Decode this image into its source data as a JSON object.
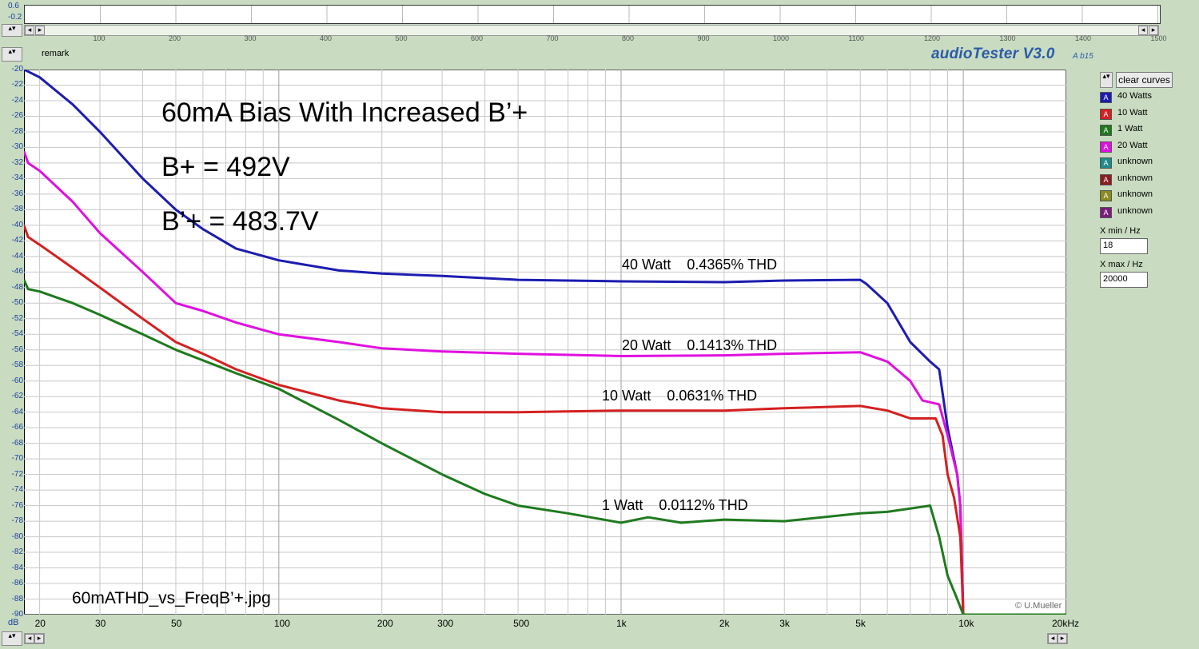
{
  "top_strip": {
    "y_labels": [
      "0.6",
      "-0.2"
    ],
    "x_ticks": [
      "100",
      "200",
      "300",
      "400",
      "500",
      "600",
      "700",
      "800",
      "900",
      "1000",
      "1100",
      "1200",
      "1300",
      "1400",
      "1500"
    ]
  },
  "header": {
    "remark_label": "remark",
    "app_title": "audioTester V3.0",
    "app_subtitle": "A b15"
  },
  "chart_texts": {
    "title_line1": "60mA Bias With Increased B’+",
    "title_line2": "B+ = 492V",
    "title_line3": "B’+ = 483.7V",
    "filename": "60mATHD_vs_FreqB’+.jpg",
    "copyright": "© U.Mueller"
  },
  "annotations": [
    {
      "label": "40 Watt    0.4365% THD",
      "color": "#000000"
    },
    {
      "label": "20 Watt    0.1413% THD",
      "color": "#000000"
    },
    {
      "label": "10 Watt    0.0631% THD",
      "color": "#000000"
    },
    {
      "label": "1 Watt    0.0112% THD",
      "color": "#000000"
    }
  ],
  "panel": {
    "clear_button": "clear curves",
    "legend": [
      {
        "label": "40 Watts",
        "color": "#1c1cb0"
      },
      {
        "label": "10 Watt",
        "color": "#d42020"
      },
      {
        "label": "1 Watt",
        "color": "#1e7a1e"
      },
      {
        "label": "20 Watt",
        "color": "#e010e0"
      },
      {
        "label": "unknown",
        "color": "#1e8a8a"
      },
      {
        "label": "unknown",
        "color": "#8a1e1e"
      },
      {
        "label": "unknown",
        "color": "#8a8a1e"
      },
      {
        "label": "unknown",
        "color": "#7a1e7a"
      }
    ],
    "xmin_label": "X min / Hz",
    "xmin_value": "18",
    "xmax_label": "X max / Hz",
    "xmax_value": "20000"
  },
  "chart_data": {
    "type": "line",
    "xlabel": "kHz",
    "ylabel": "dB",
    "x_scale": "log",
    "xlim": [
      18,
      20000
    ],
    "ylim": [
      -90,
      -20
    ],
    "grid": true,
    "x_tick_labels": [
      "20",
      "30",
      "50",
      "100",
      "200",
      "300",
      "500",
      "1k",
      "2k",
      "3k",
      "5k",
      "10k",
      "20kHz"
    ],
    "x_tick_values": [
      20,
      30,
      50,
      100,
      200,
      300,
      500,
      1000,
      2000,
      3000,
      5000,
      10000,
      20000
    ],
    "y_tick_labels": [
      "-20",
      "-22",
      "-24",
      "-26",
      "-28",
      "-30",
      "-32",
      "-34",
      "-36",
      "-38",
      "-40",
      "-42",
      "-44",
      "-46",
      "-48",
      "-50",
      "-52",
      "-54",
      "-56",
      "-58",
      "-60",
      "-62",
      "-64",
      "-66",
      "-68",
      "-70",
      "-72",
      "-74",
      "-76",
      "-78",
      "-80",
      "-82",
      "-84",
      "-86",
      "-88",
      "-90"
    ],
    "series": [
      {
        "name": "40 Watts",
        "color": "#1c1cb0",
        "points": [
          [
            18,
            -20
          ],
          [
            20,
            -21
          ],
          [
            25,
            -24.5
          ],
          [
            30,
            -28
          ],
          [
            40,
            -34
          ],
          [
            50,
            -38
          ],
          [
            60,
            -40.5
          ],
          [
            75,
            -43
          ],
          [
            100,
            -44.5
          ],
          [
            150,
            -45.8
          ],
          [
            200,
            -46.2
          ],
          [
            300,
            -46.5
          ],
          [
            500,
            -47
          ],
          [
            1000,
            -47.2
          ],
          [
            2000,
            -47.3
          ],
          [
            3000,
            -47.1
          ],
          [
            5000,
            -47
          ],
          [
            5200,
            -47.5
          ],
          [
            6000,
            -50
          ],
          [
            7000,
            -55
          ],
          [
            8000,
            -57.5
          ],
          [
            8500,
            -58.5
          ],
          [
            9000,
            -66
          ],
          [
            9600,
            -72
          ],
          [
            9800,
            -76
          ],
          [
            10000,
            -90
          ],
          [
            20000,
            -90
          ]
        ]
      },
      {
        "name": "20 Watt",
        "color": "#e010e0",
        "points": [
          [
            18,
            -30.5
          ],
          [
            18.5,
            -32
          ],
          [
            20,
            -33
          ],
          [
            25,
            -37
          ],
          [
            30,
            -41
          ],
          [
            40,
            -46
          ],
          [
            50,
            -50
          ],
          [
            60,
            -51
          ],
          [
            75,
            -52.5
          ],
          [
            100,
            -54
          ],
          [
            150,
            -55
          ],
          [
            200,
            -55.8
          ],
          [
            300,
            -56.2
          ],
          [
            500,
            -56.5
          ],
          [
            1000,
            -56.8
          ],
          [
            2000,
            -56.7
          ],
          [
            3000,
            -56.5
          ],
          [
            5000,
            -56.3
          ],
          [
            6000,
            -57.5
          ],
          [
            7000,
            -60
          ],
          [
            7600,
            -62.5
          ],
          [
            8500,
            -63
          ],
          [
            9000,
            -67
          ],
          [
            9600,
            -72
          ],
          [
            9800,
            -76
          ],
          [
            10000,
            -90
          ],
          [
            20000,
            -90
          ]
        ]
      },
      {
        "name": "10 Watt",
        "color": "#d42020",
        "points": [
          [
            18,
            -40
          ],
          [
            18.5,
            -41.5
          ],
          [
            20,
            -42.5
          ],
          [
            25,
            -45.5
          ],
          [
            30,
            -48
          ],
          [
            40,
            -52
          ],
          [
            50,
            -55
          ],
          [
            60,
            -56.5
          ],
          [
            75,
            -58.5
          ],
          [
            100,
            -60.5
          ],
          [
            150,
            -62.5
          ],
          [
            200,
            -63.5
          ],
          [
            300,
            -64
          ],
          [
            500,
            -64
          ],
          [
            1000,
            -63.8
          ],
          [
            2000,
            -63.8
          ],
          [
            3000,
            -63.5
          ],
          [
            5000,
            -63.2
          ],
          [
            6000,
            -63.8
          ],
          [
            7000,
            -64.8
          ],
          [
            8300,
            -64.8
          ],
          [
            8700,
            -67
          ],
          [
            9000,
            -72
          ],
          [
            9400,
            -75
          ],
          [
            9800,
            -80
          ],
          [
            10000,
            -90
          ],
          [
            20000,
            -90
          ]
        ]
      },
      {
        "name": "1 Watt",
        "color": "#1e7a1e",
        "points": [
          [
            18,
            -47
          ],
          [
            18.5,
            -48.2
          ],
          [
            20,
            -48.5
          ],
          [
            25,
            -50
          ],
          [
            30,
            -51.5
          ],
          [
            40,
            -54
          ],
          [
            50,
            -56
          ],
          [
            75,
            -59
          ],
          [
            100,
            -61
          ],
          [
            150,
            -65
          ],
          [
            200,
            -68
          ],
          [
            300,
            -72
          ],
          [
            400,
            -74.5
          ],
          [
            500,
            -76
          ],
          [
            700,
            -77
          ],
          [
            1000,
            -78.2
          ],
          [
            1200,
            -77.5
          ],
          [
            1500,
            -78.2
          ],
          [
            2000,
            -77.8
          ],
          [
            3000,
            -78
          ],
          [
            5000,
            -77
          ],
          [
            6000,
            -76.8
          ],
          [
            8000,
            -76
          ],
          [
            8500,
            -80
          ],
          [
            9000,
            -85
          ],
          [
            9600,
            -88
          ],
          [
            10000,
            -90
          ],
          [
            20000,
            -90
          ]
        ]
      }
    ]
  }
}
